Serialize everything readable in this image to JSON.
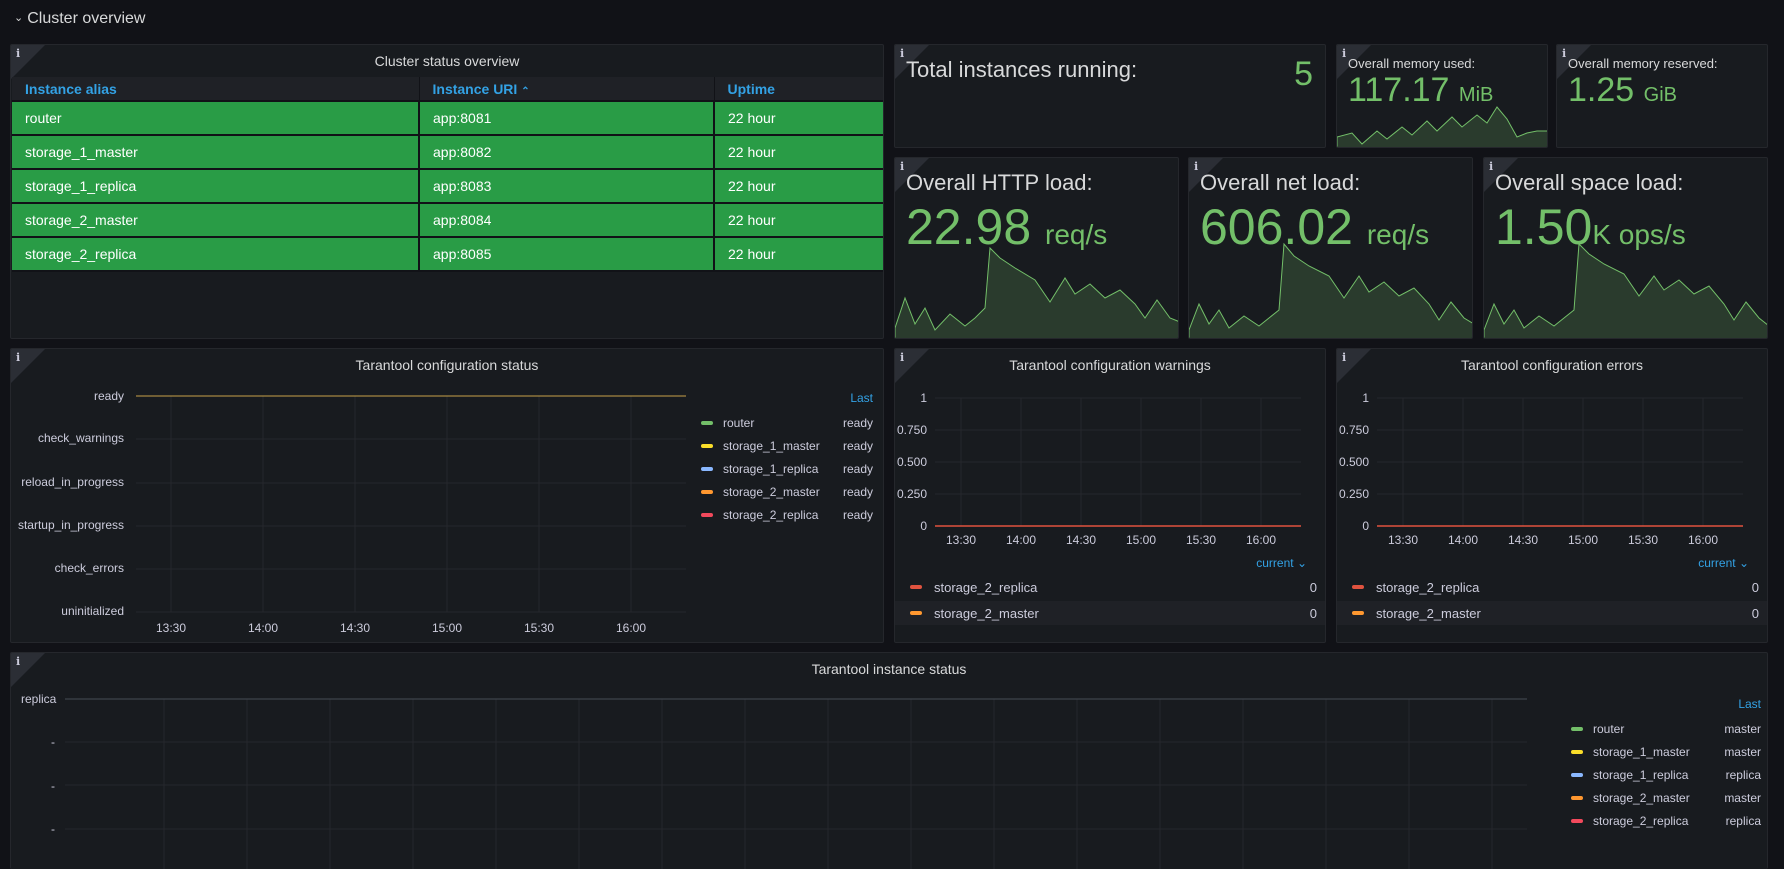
{
  "row": {
    "title": "Cluster overview"
  },
  "status_table": {
    "title": "Cluster status overview",
    "headers": {
      "alias": "Instance alias",
      "uri": "Instance URI",
      "uptime": "Uptime"
    },
    "rows": [
      {
        "alias": "router",
        "uri": "app:8081",
        "uptime": "22 hour"
      },
      {
        "alias": "storage_1_master",
        "uri": "app:8082",
        "uptime": "22 hour"
      },
      {
        "alias": "storage_1_replica",
        "uri": "app:8083",
        "uptime": "22 hour"
      },
      {
        "alias": "storage_2_master",
        "uri": "app:8084",
        "uptime": "22 hour"
      },
      {
        "alias": "storage_2_replica",
        "uri": "app:8085",
        "uptime": "22 hour"
      }
    ],
    "cell_color": "#299c46"
  },
  "instances": {
    "label": "Total instances running:",
    "value": "5"
  },
  "memory_used": {
    "label": "Overall memory used:",
    "value": "117.17",
    "unit": "MiB"
  },
  "memory_reserved": {
    "label": "Overall memory reserved:",
    "value": "1.25",
    "unit": "GiB"
  },
  "http_load": {
    "label": "Overall HTTP load:",
    "value": "22.98",
    "unit": "req/s"
  },
  "net_load": {
    "label": "Overall net load:",
    "value": "606.02",
    "unit": "req/s"
  },
  "space_load": {
    "label": "Overall space load:",
    "value": "1.50",
    "unit": "K ops/s"
  },
  "config_status": {
    "title": "Tarantool configuration status",
    "y_labels": [
      "ready",
      "check_warnings",
      "reload_in_progress",
      "startup_in_progress",
      "check_errors",
      "uninitialized"
    ],
    "x_labels": [
      "13:30",
      "14:00",
      "14:30",
      "15:00",
      "15:30",
      "16:00"
    ],
    "legend_header": "Last",
    "legend": [
      {
        "name": "router",
        "value": "ready",
        "color": "#73bf69"
      },
      {
        "name": "storage_1_master",
        "value": "ready",
        "color": "#fade2a"
      },
      {
        "name": "storage_1_replica",
        "value": "ready",
        "color": "#8ab8ff"
      },
      {
        "name": "storage_2_master",
        "value": "ready",
        "color": "#ff9830"
      },
      {
        "name": "storage_2_replica",
        "value": "ready",
        "color": "#f2495c"
      }
    ]
  },
  "config_warnings": {
    "title": "Tarantool configuration warnings",
    "y_labels": [
      "1",
      "0.750",
      "0.500",
      "0.250",
      "0"
    ],
    "x_labels": [
      "13:30",
      "14:00",
      "14:30",
      "15:00",
      "15:30",
      "16:00"
    ],
    "legend_header": "current",
    "legend": [
      {
        "name": "storage_2_replica",
        "value": "0",
        "color": "#e0533f"
      },
      {
        "name": "storage_2_master",
        "value": "0",
        "color": "#ff9830"
      }
    ]
  },
  "config_errors": {
    "title": "Tarantool configuration errors",
    "y_labels": [
      "1",
      "0.750",
      "0.500",
      "0.250",
      "0"
    ],
    "x_labels": [
      "13:30",
      "14:00",
      "14:30",
      "15:00",
      "15:30",
      "16:00"
    ],
    "legend_header": "current",
    "legend": [
      {
        "name": "storage_2_replica",
        "value": "0",
        "color": "#e0533f"
      },
      {
        "name": "storage_2_master",
        "value": "0",
        "color": "#ff9830"
      }
    ]
  },
  "instance_status": {
    "title": "Tarantool instance status",
    "y_labels": [
      "replica",
      "-",
      "-",
      "-"
    ],
    "legend_header": "Last",
    "legend": [
      {
        "name": "router",
        "value": "master",
        "color": "#73bf69"
      },
      {
        "name": "storage_1_master",
        "value": "master",
        "color": "#fade2a"
      },
      {
        "name": "storage_1_replica",
        "value": "replica",
        "color": "#8ab8ff"
      },
      {
        "name": "storage_2_master",
        "value": "master",
        "color": "#ff9830"
      },
      {
        "name": "storage_2_replica",
        "value": "replica",
        "color": "#f2495c"
      }
    ]
  },
  "info_icon": "i",
  "sort_icon": "chevron-up-icon",
  "accent": "#33a2e5",
  "stat_color": "#73bf69"
}
